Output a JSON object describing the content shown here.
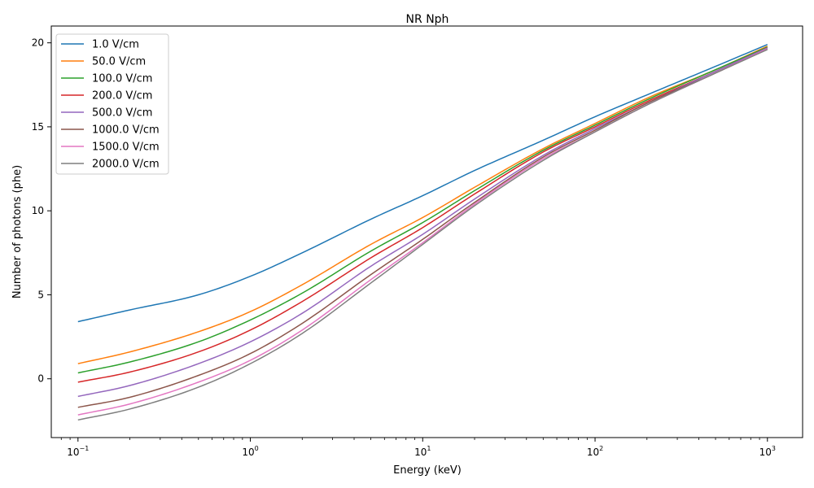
{
  "chart_data": {
    "type": "line",
    "title": "NR Nph",
    "xlabel": "Energy (keV)",
    "ylabel": "Number of photons (phe)",
    "xscale": "log",
    "xlim": [
      0.07,
      1600
    ],
    "ylim": [
      -3.5,
      21
    ],
    "x_ticks": [
      {
        "value": 0.1,
        "base": "10",
        "exp": "−1"
      },
      {
        "value": 1,
        "base": "10",
        "exp": "0"
      },
      {
        "value": 10,
        "base": "10",
        "exp": "1"
      },
      {
        "value": 100,
        "base": "10",
        "exp": "2"
      },
      {
        "value": 1000,
        "base": "10",
        "exp": "3"
      }
    ],
    "y_ticks": [
      {
        "value": 0,
        "label": "0"
      },
      {
        "value": 5,
        "label": "5"
      },
      {
        "value": 10,
        "label": "10"
      },
      {
        "value": 15,
        "label": "15"
      },
      {
        "value": 20,
        "label": "20"
      }
    ],
    "grid": false,
    "legend_position": "top-left",
    "x": [
      0.1,
      0.2,
      0.5,
      1,
      2,
      5,
      10,
      20,
      50,
      100,
      200,
      500,
      1000
    ],
    "series": [
      {
        "name": "1.0 V/cm",
        "color": "#1f77b4",
        "values": [
          3.4,
          4.1,
          5.0,
          6.1,
          7.5,
          9.5,
          10.9,
          12.4,
          14.2,
          15.6,
          16.9,
          18.6,
          19.9
        ]
      },
      {
        "name": "50.0 V/cm",
        "color": "#ff7f0e",
        "values": [
          0.9,
          1.6,
          2.8,
          4.0,
          5.6,
          8.0,
          9.6,
          11.4,
          13.7,
          15.2,
          16.7,
          18.4,
          19.8
        ]
      },
      {
        "name": "100.0 V/cm",
        "color": "#2ca02c",
        "values": [
          0.35,
          1.0,
          2.2,
          3.5,
          5.1,
          7.6,
          9.3,
          11.2,
          13.6,
          15.1,
          16.6,
          18.4,
          19.75
        ]
      },
      {
        "name": "200.0 V/cm",
        "color": "#d62728",
        "values": [
          -0.2,
          0.4,
          1.6,
          2.9,
          4.6,
          7.2,
          9.0,
          11.0,
          13.5,
          15.0,
          16.5,
          18.3,
          19.7
        ]
      },
      {
        "name": "500.0 V/cm",
        "color": "#9467bd",
        "values": [
          -1.05,
          -0.4,
          0.9,
          2.2,
          3.9,
          6.7,
          8.6,
          10.7,
          13.3,
          14.9,
          16.4,
          18.3,
          19.7
        ]
      },
      {
        "name": "1000.0 V/cm",
        "color": "#8c564b",
        "values": [
          -1.7,
          -1.1,
          0.2,
          1.5,
          3.3,
          6.2,
          8.3,
          10.5,
          13.2,
          14.8,
          16.4,
          18.2,
          19.65
        ]
      },
      {
        "name": "1500.0 V/cm",
        "color": "#e377c2",
        "values": [
          -2.15,
          -1.5,
          -0.2,
          1.1,
          2.9,
          5.9,
          8.1,
          10.4,
          13.1,
          14.7,
          16.3,
          18.2,
          19.65
        ]
      },
      {
        "name": "2000.0 V/cm",
        "color": "#7f7f7f",
        "values": [
          -2.45,
          -1.8,
          -0.5,
          0.9,
          2.7,
          5.7,
          8.0,
          10.3,
          13.0,
          14.7,
          16.3,
          18.2,
          19.6
        ]
      }
    ]
  }
}
